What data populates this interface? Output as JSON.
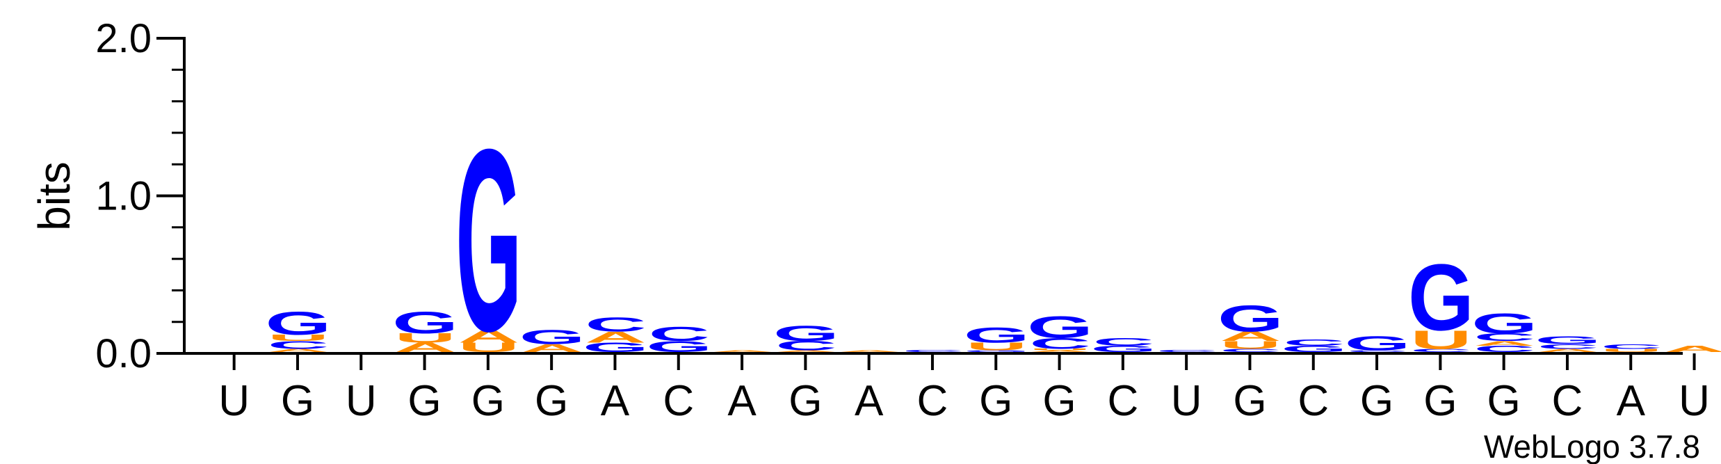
{
  "chart_data": {
    "type": "sequence-logo",
    "ylabel": "bits",
    "ylim": [
      0,
      2.0
    ],
    "yticks": [
      "0.0",
      "1.0",
      "2.0"
    ],
    "credit": "WebLogo 3.7.8",
    "colors": {
      "G": "#0000ff",
      "C": "#0000ff",
      "A": "#ff8c00",
      "U": "#ff8c00"
    },
    "xlabels": [
      "U",
      "G",
      "U",
      "G",
      "G",
      "G",
      "A",
      "C",
      "A",
      "G",
      "A",
      "C",
      "G",
      "G",
      "C",
      "U",
      "G",
      "C",
      "G",
      "G",
      "G",
      "C",
      "A",
      "U"
    ],
    "positions": [
      [],
      [
        [
          "A",
          0.02
        ],
        [
          "C",
          0.05
        ],
        [
          "U",
          0.04
        ],
        [
          "G",
          0.15
        ]
      ],
      [],
      [
        [
          "A",
          0.06
        ],
        [
          "U",
          0.06
        ],
        [
          "G",
          0.14
        ]
      ],
      [
        [
          "U",
          0.06
        ],
        [
          "A",
          0.08
        ],
        [
          "G",
          1.18
        ]
      ],
      [
        [
          "A",
          0.05
        ],
        [
          "G",
          0.09
        ]
      ],
      [
        [
          "G",
          0.06
        ],
        [
          "A",
          0.07
        ],
        [
          "C",
          0.09
        ]
      ],
      [
        [
          "G",
          0.07
        ],
        [
          "C",
          0.09
        ]
      ],
      [
        [
          "A",
          0.01
        ]
      ],
      [
        [
          "A",
          0.01
        ],
        [
          "C",
          0.06
        ],
        [
          "G",
          0.1
        ]
      ],
      [
        [
          "A",
          0.01
        ]
      ],
      [
        [
          "C",
          0.015
        ]
      ],
      [
        [
          "G",
          0.01
        ],
        [
          "U",
          0.05
        ],
        [
          "G",
          0.1
        ]
      ],
      [
        [
          "A",
          0.01
        ],
        [
          "U",
          0.01
        ],
        [
          "C",
          0.07
        ],
        [
          "G",
          0.14
        ]
      ],
      [
        [
          "G",
          0.04
        ],
        [
          "C",
          0.05
        ]
      ],
      [
        [
          "C",
          0.015
        ]
      ],
      [
        [
          "C",
          0.02
        ],
        [
          "U",
          0.05
        ],
        [
          "A",
          0.06
        ],
        [
          "G",
          0.17
        ]
      ],
      [
        [
          "G",
          0.04
        ],
        [
          "C",
          0.04
        ]
      ],
      [
        [
          "C",
          0.01
        ],
        [
          "G",
          0.09
        ]
      ],
      [
        [
          "C",
          0.02
        ],
        [
          "U",
          0.12
        ],
        [
          "G",
          0.43
        ]
      ],
      [
        [
          "C",
          0.04
        ],
        [
          "A",
          0.03
        ],
        [
          "C",
          0.05
        ],
        [
          "G",
          0.13
        ]
      ],
      [
        [
          "A",
          0.02
        ],
        [
          "C",
          0.03
        ],
        [
          "G",
          0.05
        ]
      ],
      [
        [
          "U",
          0.02
        ],
        [
          "C",
          0.03
        ]
      ],
      [
        [
          "A",
          0.04
        ]
      ]
    ]
  }
}
